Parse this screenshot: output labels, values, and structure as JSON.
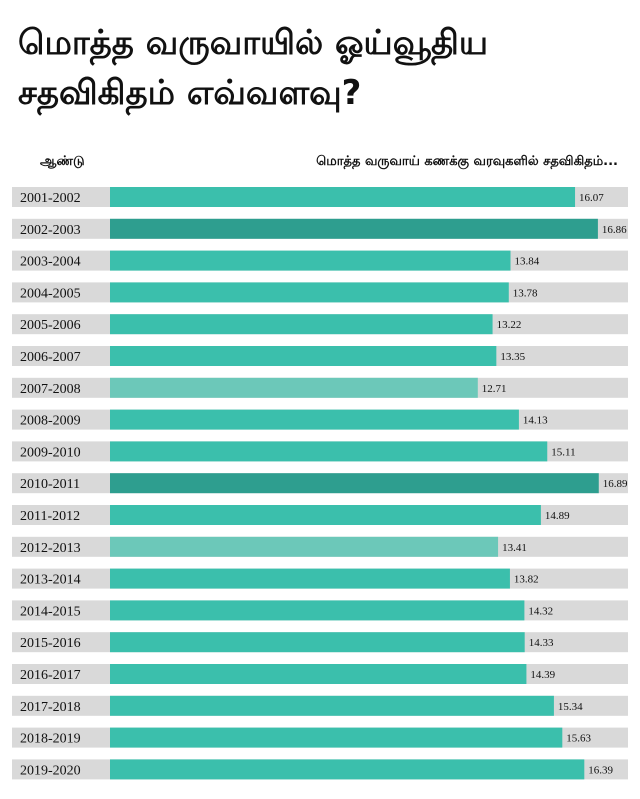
{
  "title_lines": [
    "மொத்த வருவாயில் ஓய்வூதிய",
    "சதவிகிதம் எவ்வளவு?"
  ],
  "header": {
    "year_label": "ஆண்டு",
    "value_label": "மொத்த வருவாய் கணக்கு வரவுகளில் சதவிகிதம்..."
  },
  "colors": {
    "bar": "#3bbfac",
    "bar_dark": "#2e9e8f",
    "bar_light": "#6cc8b9",
    "track": "#d9d9d9",
    "background": "#ffffff"
  },
  "chart_data": {
    "type": "bar",
    "orientation": "horizontal",
    "categories": [
      "2001-2002",
      "2002-2003",
      "2003-2004",
      "2004-2005",
      "2005-2006",
      "2006-2007",
      "2007-2008",
      "2008-2009",
      "2009-2010",
      "2010-2011",
      "2011-2012",
      "2012-2013",
      "2013-2014",
      "2014-2015",
      "2015-2016",
      "2016-2017",
      "2017-2018",
      "2018-2019",
      "2019-2020"
    ],
    "values": [
      16.07,
      16.86,
      13.84,
      13.78,
      13.22,
      13.35,
      12.71,
      14.13,
      15.11,
      16.89,
      14.89,
      13.41,
      13.82,
      14.32,
      14.33,
      14.39,
      15.34,
      15.63,
      16.39
    ],
    "value_labels": [
      "16.07",
      "16.86",
      "13.84",
      "13.78",
      "13.22",
      "13.35",
      "12.71",
      "14.13",
      "15.11",
      "16.89",
      "14.89",
      "13.41",
      "13.82",
      "14.32",
      "14.33",
      "14.39",
      "15.34",
      "15.63",
      "16.39"
    ],
    "bar_shades": [
      "normal",
      "dark",
      "normal",
      "normal",
      "normal",
      "normal",
      "light",
      "normal",
      "normal",
      "dark",
      "normal",
      "light",
      "normal",
      "normal",
      "normal",
      "normal",
      "normal",
      "normal",
      "normal"
    ],
    "xlim": [
      0,
      17.9
    ],
    "ylabel": "ஆண்டு",
    "xlabel": "மொத்த வருவாய் கணக்கு வரவுகளில் சதவிகிதம்...",
    "grid": false,
    "legend": "none"
  }
}
